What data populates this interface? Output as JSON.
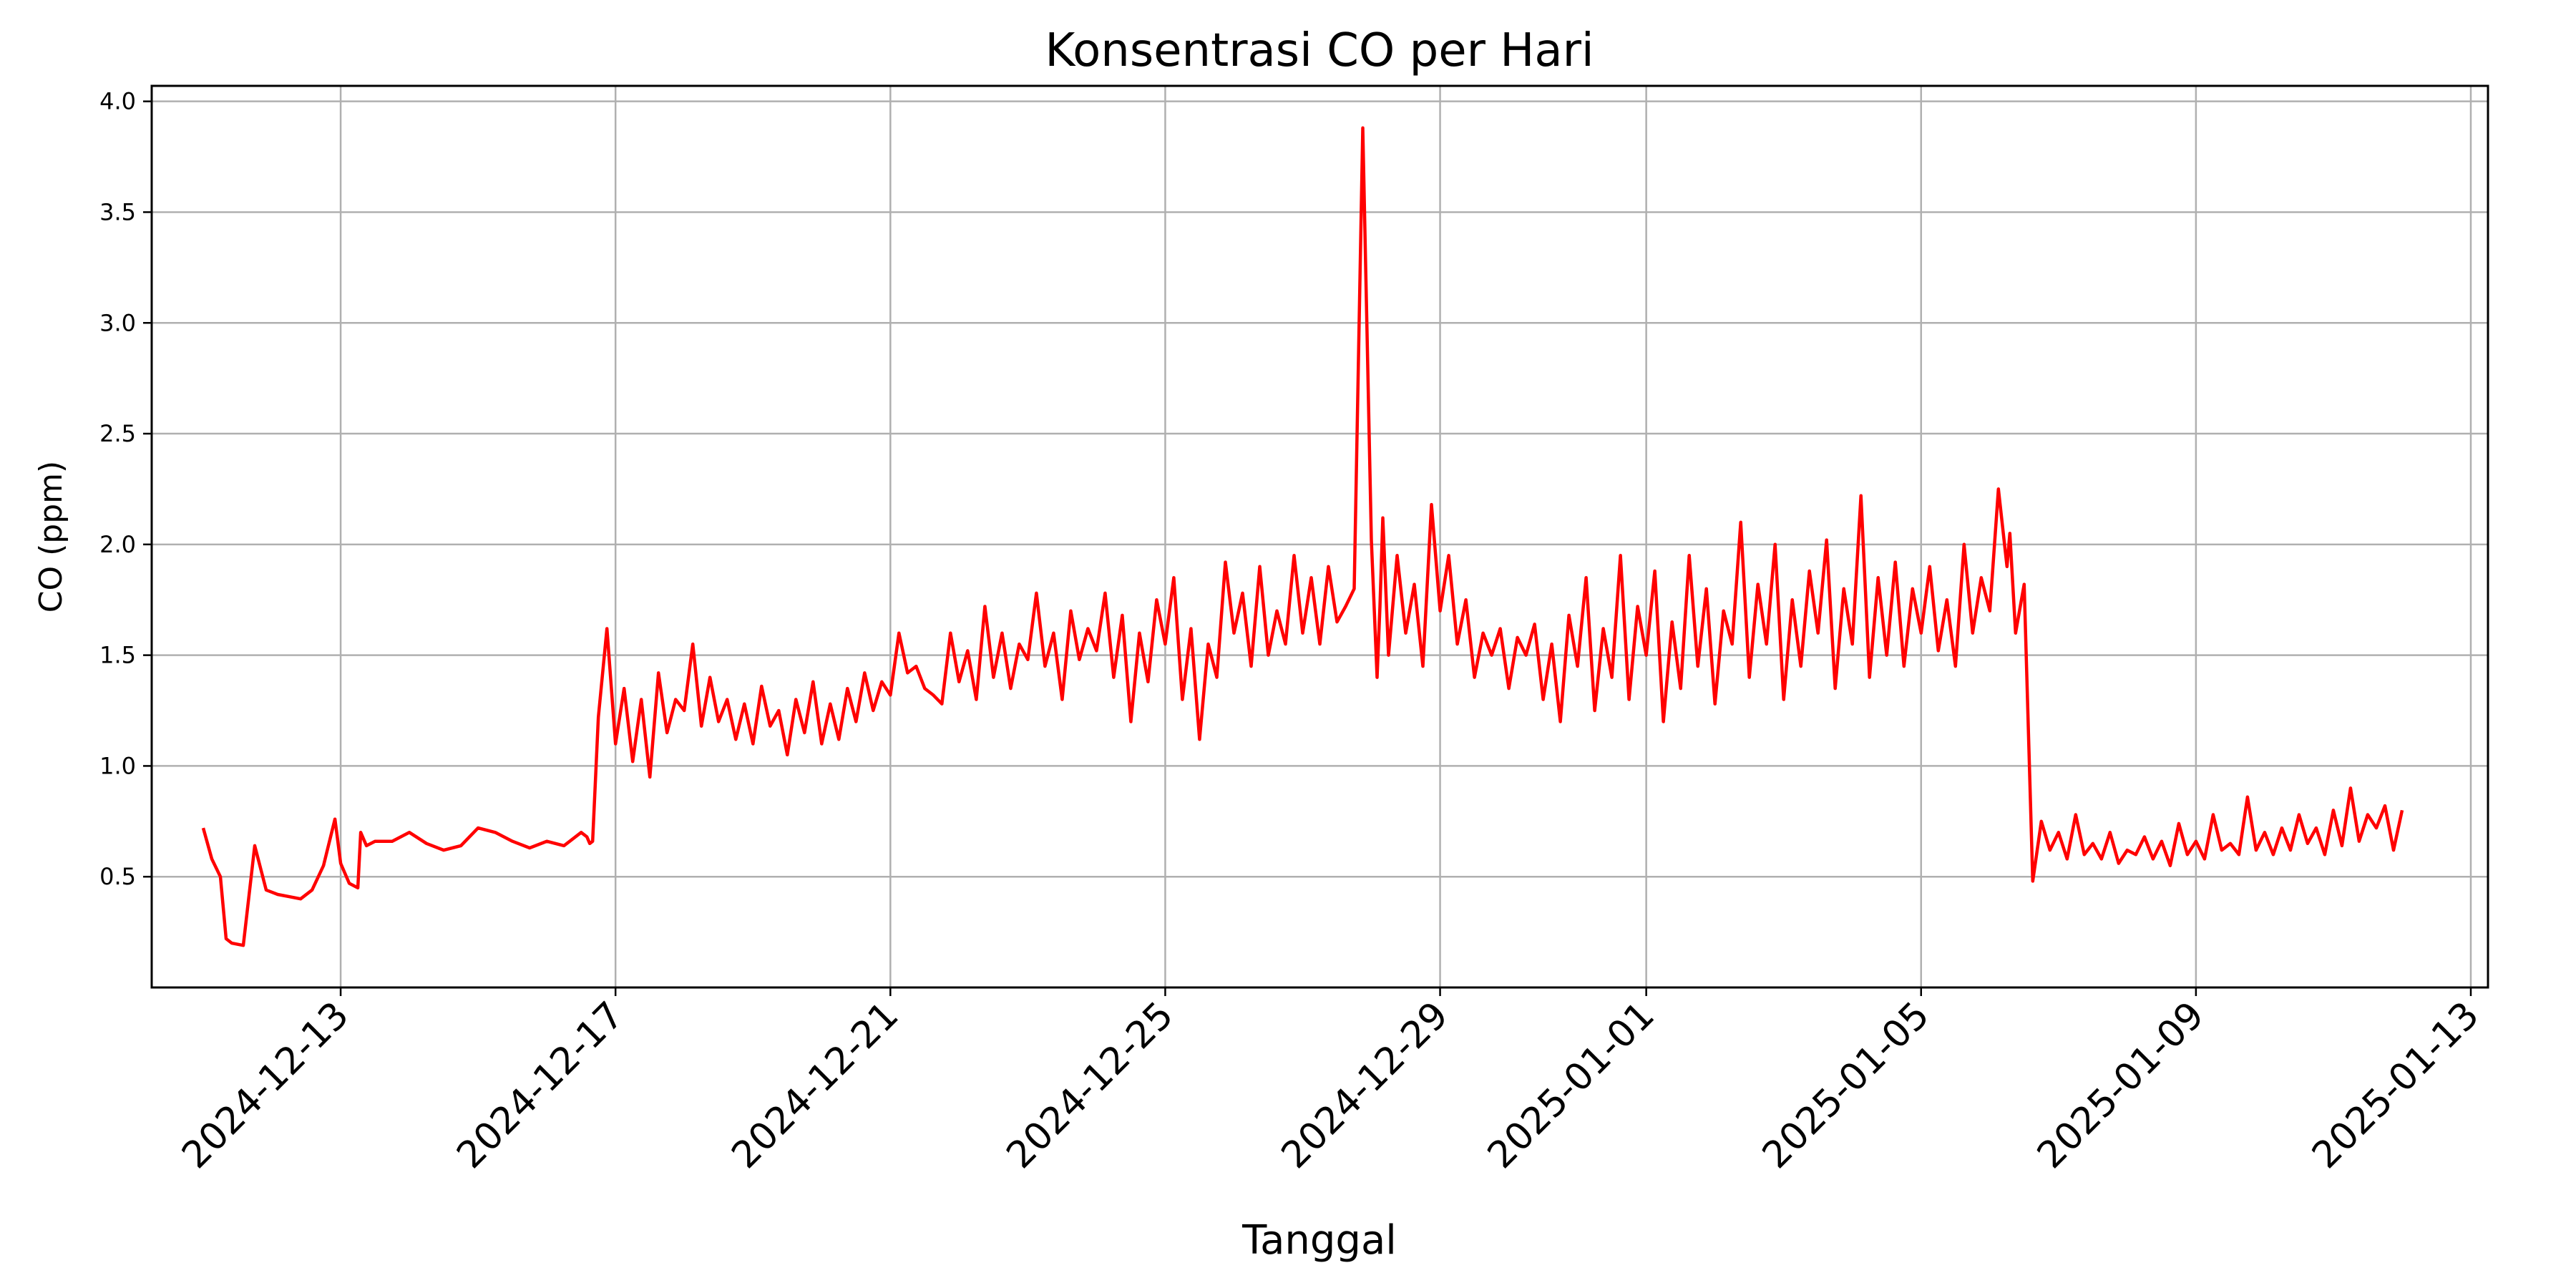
{
  "chart_data": {
    "type": "line",
    "title": "Konsentrasi CO per Hari",
    "xlabel": "Tanggal",
    "ylabel": "CO (ppm)",
    "x_type": "date",
    "xlim": [
      "2024-12-10T06:00",
      "2025-01-13T06:00"
    ],
    "ylim": [
      0.0,
      4.07
    ],
    "grid": true,
    "line_color": "#ff0000",
    "x_ticks": [
      "2024-12-13",
      "2024-12-17",
      "2024-12-21",
      "2024-12-25",
      "2024-12-29",
      "2025-01-01",
      "2025-01-05",
      "2025-01-09",
      "2025-01-13"
    ],
    "y_ticks": [
      "0.5",
      "1.0",
      "1.5",
      "2.0",
      "2.5",
      "3.0",
      "3.5",
      "4.0"
    ],
    "series": [
      {
        "name": "",
        "x": [
          "2024-12-11T00:00",
          "2024-12-11T03:00",
          "2024-12-11T06:00",
          "2024-12-11T08:00",
          "2024-12-11T10:00",
          "2024-12-11T14:00",
          "2024-12-11T18:00",
          "2024-12-11T22:00",
          "2024-12-12T02:00",
          "2024-12-12T06:00",
          "2024-12-12T10:00",
          "2024-12-12T14:00",
          "2024-12-12T18:00",
          "2024-12-12T22:00",
          "2024-12-13T00:00",
          "2024-12-13T03:00",
          "2024-12-13T06:00",
          "2024-12-13T07:00",
          "2024-12-13T09:00",
          "2024-12-13T12:00",
          "2024-12-13T18:00",
          "2024-12-14T00:00",
          "2024-12-14T06:00",
          "2024-12-14T12:00",
          "2024-12-14T18:00",
          "2024-12-15T00:00",
          "2024-12-15T06:00",
          "2024-12-15T12:00",
          "2024-12-15T18:00",
          "2024-12-16T00:00",
          "2024-12-16T06:00",
          "2024-12-16T12:00",
          "2024-12-16T14:00",
          "2024-12-16T15:00",
          "2024-12-16T16:00",
          "2024-12-16T18:00",
          "2024-12-16T21:00",
          "2024-12-17T00:00",
          "2024-12-17T03:00",
          "2024-12-17T06:00",
          "2024-12-17T09:00",
          "2024-12-17T12:00",
          "2024-12-17T15:00",
          "2024-12-17T18:00",
          "2024-12-17T21:00",
          "2024-12-18T00:00",
          "2024-12-18T03:00",
          "2024-12-18T06:00",
          "2024-12-18T09:00",
          "2024-12-18T12:00",
          "2024-12-18T15:00",
          "2024-12-18T18:00",
          "2024-12-18T21:00",
          "2024-12-19T00:00",
          "2024-12-19T03:00",
          "2024-12-19T06:00",
          "2024-12-19T09:00",
          "2024-12-19T12:00",
          "2024-12-19T15:00",
          "2024-12-19T18:00",
          "2024-12-19T21:00",
          "2024-12-20T00:00",
          "2024-12-20T03:00",
          "2024-12-20T06:00",
          "2024-12-20T09:00",
          "2024-12-20T12:00",
          "2024-12-20T15:00",
          "2024-12-20T18:00",
          "2024-12-20T21:00",
          "2024-12-21T00:00",
          "2024-12-21T03:00",
          "2024-12-21T06:00",
          "2024-12-21T09:00",
          "2024-12-21T12:00",
          "2024-12-21T15:00",
          "2024-12-21T18:00",
          "2024-12-21T21:00",
          "2024-12-22T00:00",
          "2024-12-22T03:00",
          "2024-12-22T06:00",
          "2024-12-22T09:00",
          "2024-12-22T12:00",
          "2024-12-22T15:00",
          "2024-12-22T18:00",
          "2024-12-22T21:00",
          "2024-12-23T00:00",
          "2024-12-23T03:00",
          "2024-12-23T06:00",
          "2024-12-23T09:00",
          "2024-12-23T12:00",
          "2024-12-23T15:00",
          "2024-12-23T18:00",
          "2024-12-23T21:00",
          "2024-12-24T00:00",
          "2024-12-24T03:00",
          "2024-12-24T06:00",
          "2024-12-24T09:00",
          "2024-12-24T12:00",
          "2024-12-24T15:00",
          "2024-12-24T18:00",
          "2024-12-24T21:00",
          "2024-12-25T00:00",
          "2024-12-25T03:00",
          "2024-12-25T06:00",
          "2024-12-25T09:00",
          "2024-12-25T12:00",
          "2024-12-25T15:00",
          "2024-12-25T18:00",
          "2024-12-25T21:00",
          "2024-12-26T00:00",
          "2024-12-26T03:00",
          "2024-12-26T06:00",
          "2024-12-26T09:00",
          "2024-12-26T12:00",
          "2024-12-26T15:00",
          "2024-12-26T18:00",
          "2024-12-26T21:00",
          "2024-12-27T00:00",
          "2024-12-27T03:00",
          "2024-12-27T06:00",
          "2024-12-27T09:00",
          "2024-12-27T12:00",
          "2024-12-27T15:00",
          "2024-12-27T18:00",
          "2024-12-27T21:00",
          "2024-12-28T00:00",
          "2024-12-28T02:00",
          "2024-12-28T03:00",
          "2024-12-28T04:00",
          "2024-12-28T06:00",
          "2024-12-28T09:00",
          "2024-12-28T12:00",
          "2024-12-28T15:00",
          "2024-12-28T18:00",
          "2024-12-28T21:00",
          "2024-12-29T00:00",
          "2024-12-29T03:00",
          "2024-12-29T06:00",
          "2024-12-29T09:00",
          "2024-12-29T12:00",
          "2024-12-29T15:00",
          "2024-12-29T18:00",
          "2024-12-29T21:00",
          "2024-12-30T00:00",
          "2024-12-30T03:00",
          "2024-12-30T06:00",
          "2024-12-30T09:00",
          "2024-12-30T12:00",
          "2024-12-30T15:00",
          "2024-12-30T18:00",
          "2024-12-30T21:00",
          "2024-12-31T00:00",
          "2024-12-31T03:00",
          "2024-12-31T06:00",
          "2024-12-31T09:00",
          "2024-12-31T12:00",
          "2024-12-31T15:00",
          "2024-12-31T18:00",
          "2024-12-31T21:00",
          "2025-01-01T00:00",
          "2025-01-01T03:00",
          "2025-01-01T06:00",
          "2025-01-01T09:00",
          "2025-01-01T12:00",
          "2025-01-01T15:00",
          "2025-01-01T18:00",
          "2025-01-01T21:00",
          "2025-01-02T00:00",
          "2025-01-02T03:00",
          "2025-01-02T06:00",
          "2025-01-02T09:00",
          "2025-01-02T12:00",
          "2025-01-02T15:00",
          "2025-01-02T18:00",
          "2025-01-02T21:00",
          "2025-01-03T00:00",
          "2025-01-03T03:00",
          "2025-01-03T06:00",
          "2025-01-03T09:00",
          "2025-01-03T12:00",
          "2025-01-03T15:00",
          "2025-01-03T18:00",
          "2025-01-03T21:00",
          "2025-01-04T00:00",
          "2025-01-04T03:00",
          "2025-01-04T06:00",
          "2025-01-04T09:00",
          "2025-01-04T12:00",
          "2025-01-04T15:00",
          "2025-01-04T18:00",
          "2025-01-04T21:00",
          "2025-01-05T00:00",
          "2025-01-05T03:00",
          "2025-01-05T06:00",
          "2025-01-05T09:00",
          "2025-01-05T12:00",
          "2025-01-05T15:00",
          "2025-01-05T18:00",
          "2025-01-05T21:00",
          "2025-01-06T00:00",
          "2025-01-06T03:00",
          "2025-01-06T06:00",
          "2025-01-06T07:00",
          "2025-01-06T09:00",
          "2025-01-06T12:00",
          "2025-01-06T15:00",
          "2025-01-06T18:00",
          "2025-01-06T21:00",
          "2025-01-07T00:00",
          "2025-01-07T03:00",
          "2025-01-07T06:00",
          "2025-01-07T09:00",
          "2025-01-07T12:00",
          "2025-01-07T15:00",
          "2025-01-07T18:00",
          "2025-01-07T21:00",
          "2025-01-08T00:00",
          "2025-01-08T03:00",
          "2025-01-08T06:00",
          "2025-01-08T09:00",
          "2025-01-08T12:00",
          "2025-01-08T15:00",
          "2025-01-08T18:00",
          "2025-01-08T21:00",
          "2025-01-09T00:00",
          "2025-01-09T03:00",
          "2025-01-09T06:00",
          "2025-01-09T09:00",
          "2025-01-09T12:00",
          "2025-01-09T15:00",
          "2025-01-09T18:00",
          "2025-01-09T21:00",
          "2025-01-10T00:00",
          "2025-01-10T03:00",
          "2025-01-10T06:00",
          "2025-01-10T09:00",
          "2025-01-10T12:00",
          "2025-01-10T15:00",
          "2025-01-10T18:00",
          "2025-01-10T21:00",
          "2025-01-11T00:00",
          "2025-01-11T03:00",
          "2025-01-11T06:00",
          "2025-01-11T09:00",
          "2025-01-11T12:00",
          "2025-01-11T15:00",
          "2025-01-11T18:00",
          "2025-01-11T21:00",
          "2025-01-12T00:00"
        ],
        "y": [
          0.72,
          0.58,
          0.5,
          0.22,
          0.2,
          0.19,
          0.64,
          0.44,
          0.42,
          0.41,
          0.4,
          0.44,
          0.55,
          0.76,
          0.56,
          0.47,
          0.45,
          0.7,
          0.64,
          0.66,
          0.66,
          0.7,
          0.65,
          0.62,
          0.64,
          0.72,
          0.7,
          0.66,
          0.63,
          0.66,
          0.64,
          0.7,
          0.68,
          0.65,
          0.66,
          1.22,
          1.62,
          1.1,
          1.35,
          1.02,
          1.3,
          0.95,
          1.42,
          1.15,
          1.3,
          1.25,
          1.55,
          1.18,
          1.4,
          1.2,
          1.3,
          1.12,
          1.28,
          1.1,
          1.36,
          1.18,
          1.25,
          1.05,
          1.3,
          1.15,
          1.38,
          1.1,
          1.28,
          1.12,
          1.35,
          1.2,
          1.42,
          1.25,
          1.38,
          1.32,
          1.6,
          1.42,
          1.45,
          1.35,
          1.32,
          1.28,
          1.6,
          1.38,
          1.52,
          1.3,
          1.72,
          1.4,
          1.6,
          1.35,
          1.55,
          1.48,
          1.78,
          1.45,
          1.6,
          1.3,
          1.7,
          1.48,
          1.62,
          1.52,
          1.78,
          1.4,
          1.68,
          1.2,
          1.6,
          1.38,
          1.75,
          1.55,
          1.85,
          1.3,
          1.62,
          1.12,
          1.55,
          1.4,
          1.92,
          1.6,
          1.78,
          1.45,
          1.9,
          1.5,
          1.7,
          1.55,
          1.95,
          1.6,
          1.85,
          1.55,
          1.9,
          1.65,
          1.72,
          1.8,
          3.88,
          2.02,
          1.4,
          1.72,
          2.12,
          1.5,
          1.95,
          1.6,
          1.82,
          1.45,
          2.18,
          1.7,
          1.95,
          1.55,
          1.75,
          1.4,
          1.6,
          1.5,
          1.62,
          1.35,
          1.58,
          1.5,
          1.64,
          1.3,
          1.55,
          1.2,
          1.68,
          1.45,
          1.85,
          1.25,
          1.62,
          1.4,
          1.95,
          1.3,
          1.72,
          1.5,
          1.88,
          1.2,
          1.65,
          1.35,
          1.95,
          1.45,
          1.8,
          1.28,
          1.7,
          1.55,
          2.1,
          1.4,
          1.82,
          1.55,
          2.0,
          1.3,
          1.75,
          1.45,
          1.88,
          1.6,
          2.02,
          1.35,
          1.8,
          1.55,
          2.22,
          1.4,
          1.85,
          1.5,
          1.92,
          1.45,
          1.8,
          1.6,
          1.9,
          1.52,
          1.75,
          1.45,
          2.0,
          1.6,
          1.85,
          1.7,
          2.25,
          1.9,
          2.05,
          1.6,
          1.82,
          0.48,
          0.75,
          0.62,
          0.7,
          0.58,
          0.78,
          0.6,
          0.65,
          0.58,
          0.7,
          0.56,
          0.62,
          0.6,
          0.68,
          0.58,
          0.66,
          0.55,
          0.74,
          0.6,
          0.66,
          0.58,
          0.78,
          0.62,
          0.65,
          0.6,
          0.86,
          0.62,
          0.7,
          0.6,
          0.72,
          0.62,
          0.78,
          0.65,
          0.72,
          0.6,
          0.8,
          0.64,
          0.9,
          0.66,
          0.78,
          0.72,
          0.82,
          0.62,
          0.8
        ]
      }
    ]
  }
}
